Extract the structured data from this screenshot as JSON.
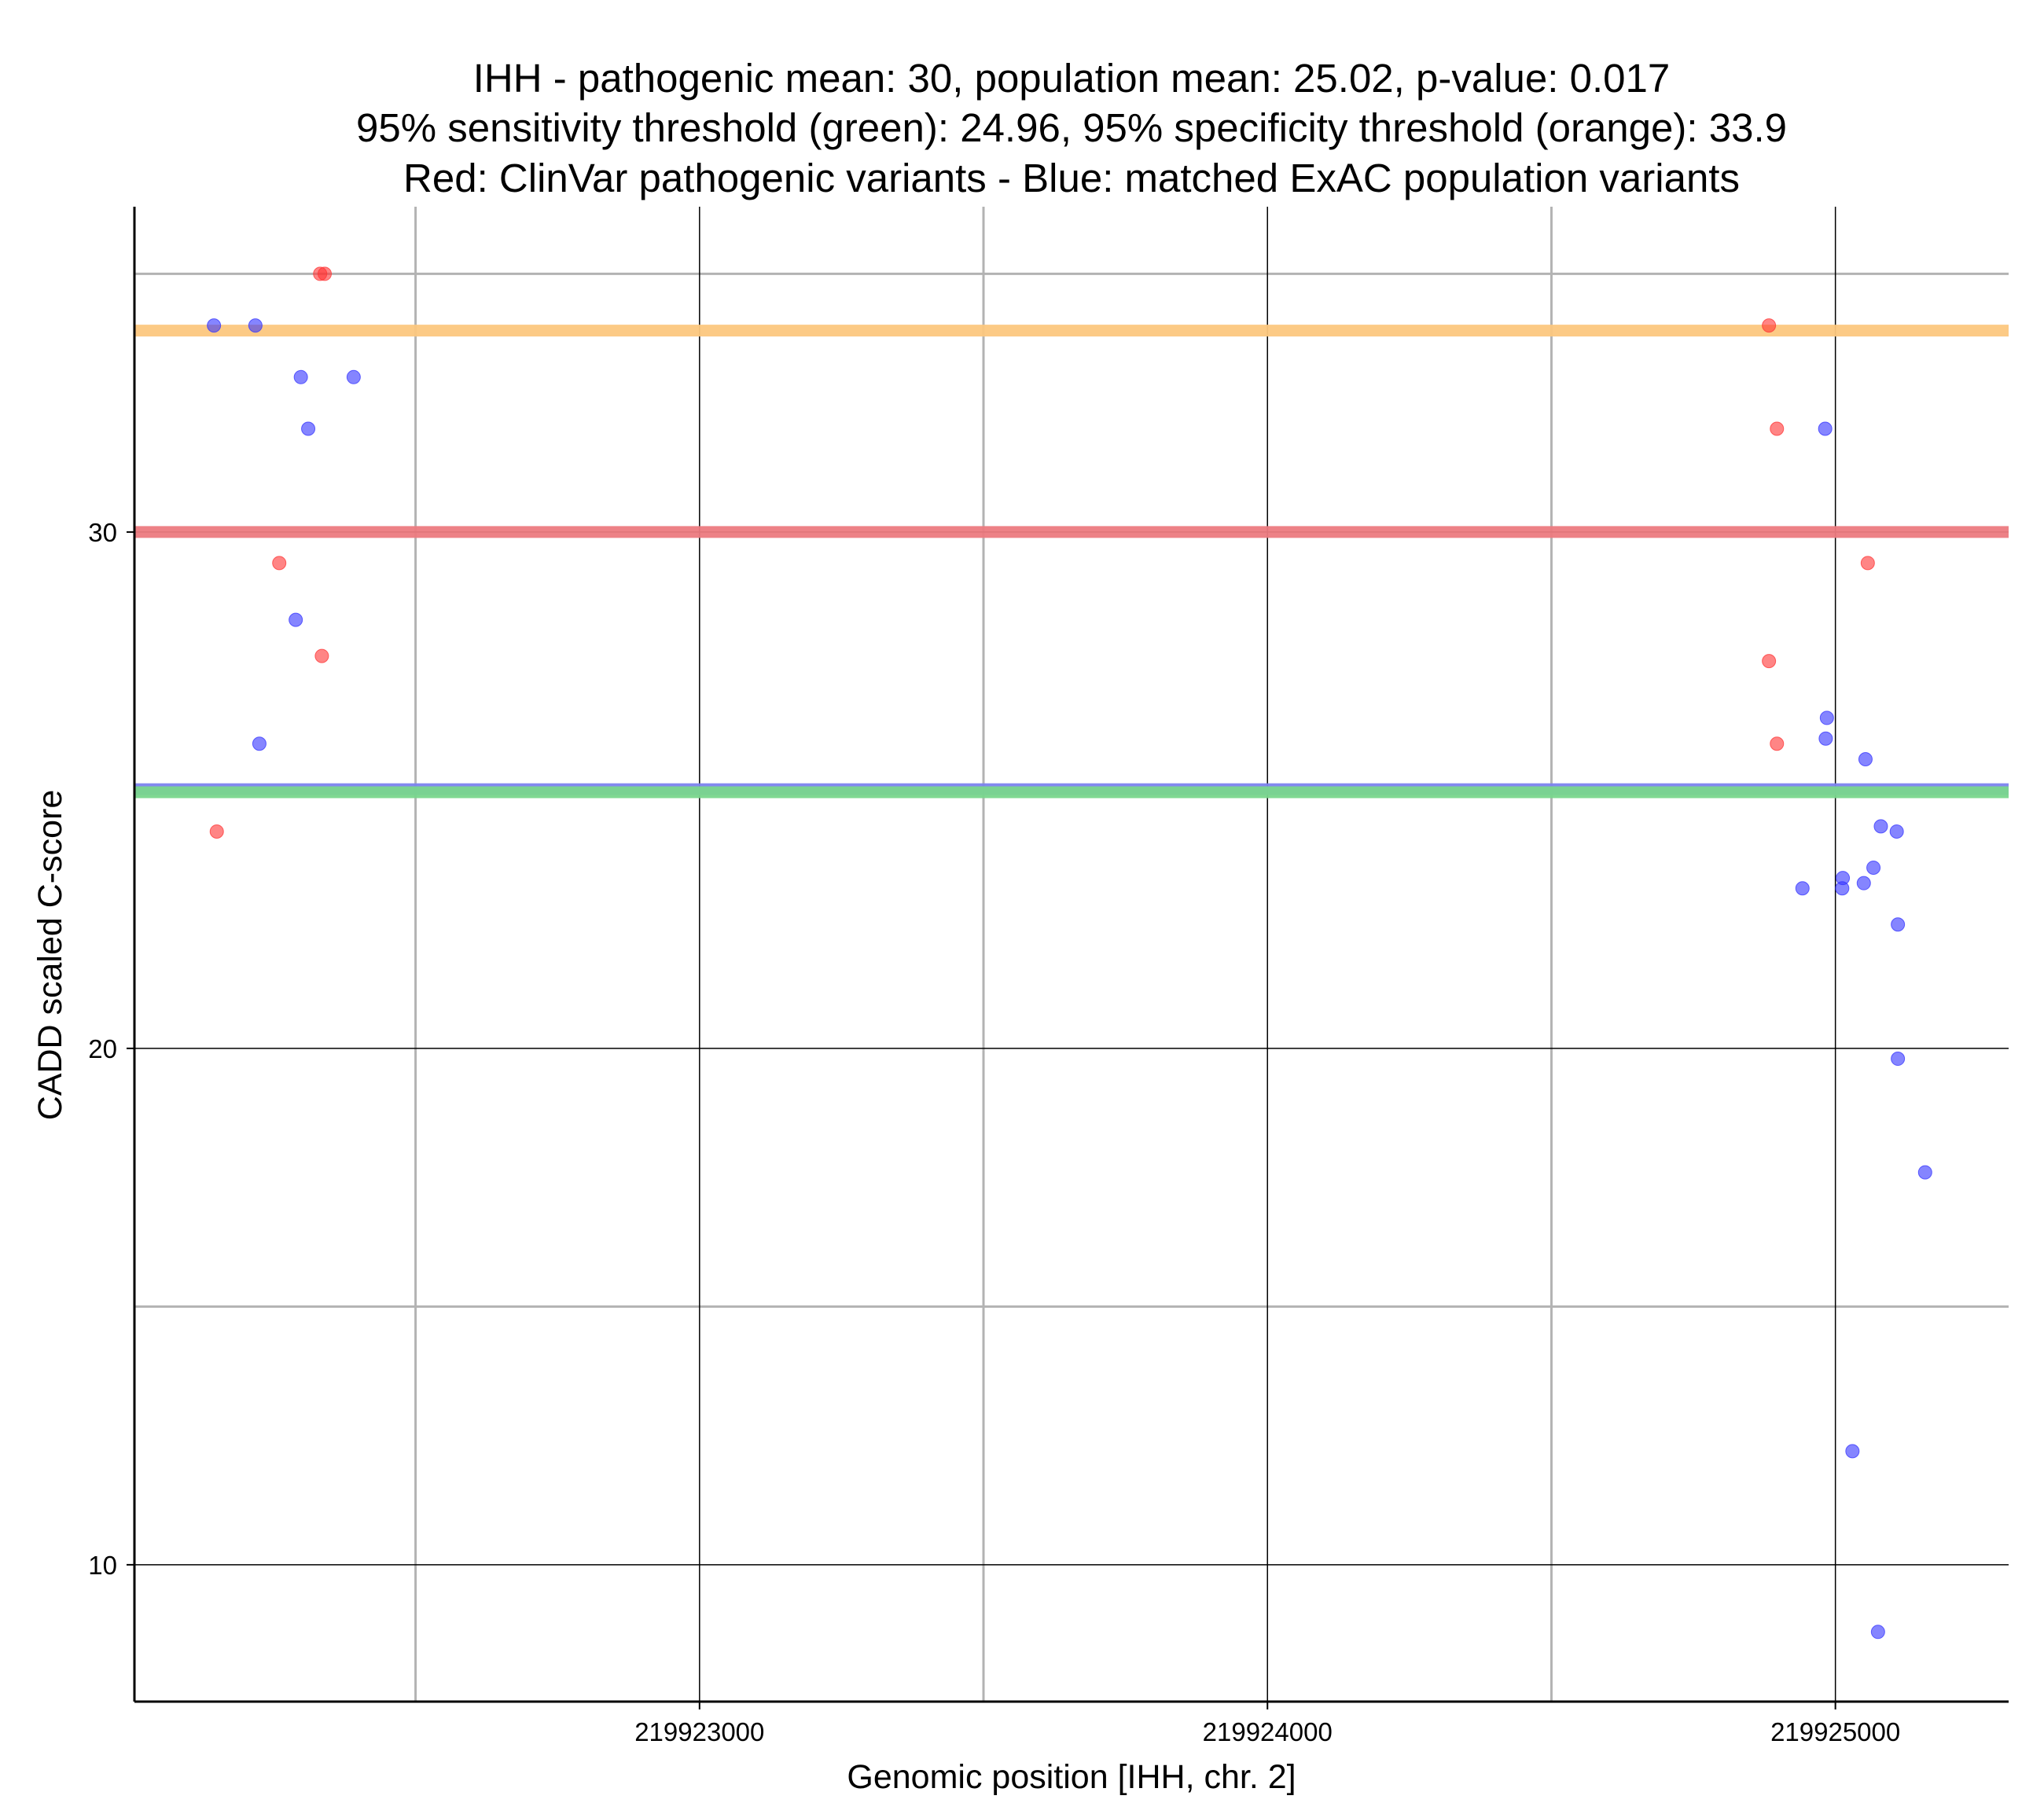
{
  "chart_data": {
    "type": "scatter",
    "title_lines": [
      "IHH - pathogenic mean: 30, population mean: 25.02, p-value: 0.017",
      "95% sensitivity threshold (green): 24.96, 95% specificity threshold (orange): 33.9",
      "Red: ClinVar pathogenic variants - Blue: matched ExAC population variants"
    ],
    "xlabel": "Genomic position [IHH, chr. 2]",
    "ylabel": "CADD scaled C-score",
    "xlim": [
      219922005,
      219925305
    ],
    "ylim": [
      7.35,
      36.3
    ],
    "x_major_ticks": [
      219923000,
      219924000,
      219925000
    ],
    "x_tick_labels": [
      "219923000",
      "219924000",
      "219925000"
    ],
    "x_minor_ticks": [
      219922500,
      219923500,
      219924500
    ],
    "y_major_ticks": [
      10,
      20,
      30
    ],
    "y_tick_labels": [
      "10",
      "20",
      "30"
    ],
    "y_minor_ticks": [
      15,
      35
    ],
    "reference_lines": [
      {
        "name": "specificity-threshold",
        "value": 33.9,
        "color": "#fcc77e"
      },
      {
        "name": "pathogenic-mean",
        "value": 30.0,
        "color": "#ec7a80"
      },
      {
        "name": "population-mean",
        "value": 25.02,
        "color": "#7b82ee"
      },
      {
        "name": "sensitivity-threshold",
        "value": 24.96,
        "color": "#79d68c"
      }
    ],
    "series": [
      {
        "name": "ClinVar pathogenic variants",
        "color": "#ff3333",
        "points": [
          {
            "x": 219922332,
            "y": 35.0
          },
          {
            "x": 219922340,
            "y": 35.0
          },
          {
            "x": 219922150,
            "y": 24.2
          },
          {
            "x": 219922260,
            "y": 29.4
          },
          {
            "x": 219922335,
            "y": 27.6
          },
          {
            "x": 219924883,
            "y": 34.0
          },
          {
            "x": 219924897,
            "y": 32.0
          },
          {
            "x": 219924883,
            "y": 27.5
          },
          {
            "x": 219924897,
            "y": 25.9
          },
          {
            "x": 219925057,
            "y": 29.4
          }
        ]
      },
      {
        "name": "matched ExAC population variants",
        "color": "#3333ff",
        "points": [
          {
            "x": 219922145,
            "y": 34.0
          },
          {
            "x": 219922218,
            "y": 34.0
          },
          {
            "x": 219922298,
            "y": 33.0
          },
          {
            "x": 219922391,
            "y": 33.0
          },
          {
            "x": 219922311,
            "y": 32.0
          },
          {
            "x": 219922289,
            "y": 28.3
          },
          {
            "x": 219922225,
            "y": 25.9
          },
          {
            "x": 219924982,
            "y": 32.0
          },
          {
            "x": 219924985,
            "y": 26.4
          },
          {
            "x": 219924983,
            "y": 26.0
          },
          {
            "x": 219925053,
            "y": 25.6
          },
          {
            "x": 219925080,
            "y": 24.3
          },
          {
            "x": 219925108,
            "y": 24.2
          },
          {
            "x": 219925067,
            "y": 23.5
          },
          {
            "x": 219925013,
            "y": 23.3
          },
          {
            "x": 219924942,
            "y": 23.1
          },
          {
            "x": 219925012,
            "y": 23.1
          },
          {
            "x": 219925050,
            "y": 23.2
          },
          {
            "x": 219925110,
            "y": 22.4
          },
          {
            "x": 219925110,
            "y": 19.8
          },
          {
            "x": 219925158,
            "y": 17.6
          },
          {
            "x": 219925030,
            "y": 12.2
          },
          {
            "x": 219925075,
            "y": 8.7
          }
        ]
      }
    ]
  }
}
